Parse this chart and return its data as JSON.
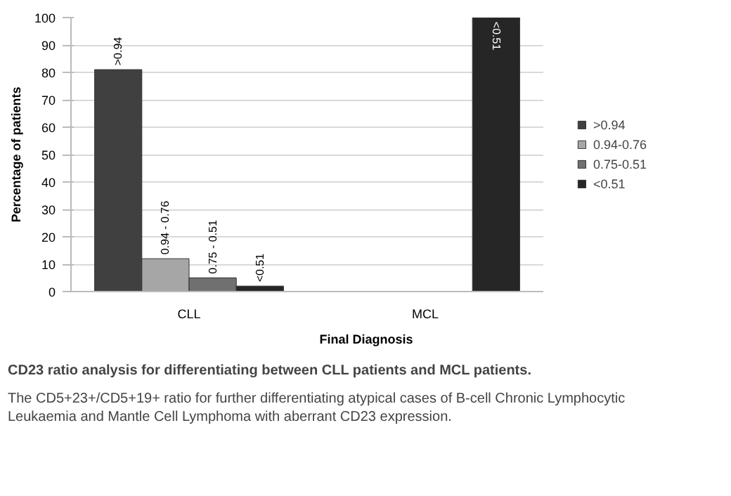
{
  "chart_data": {
    "type": "bar",
    "title": "CD23 ratio analysis for differentiating between CLL patients and MCL patients.",
    "subtitle": "The CD5+23+/CD5+19+ ratio for further differentiating atypical cases of B-cell Chronic Lymphocytic Leukaemia and Mantle Cell Lymphoma with aberrant CD23 expression.",
    "xlabel": "Final Diagnosis",
    "ylabel": "Percentage of patients",
    "categories": [
      "CLL",
      "MCL"
    ],
    "series": [
      {
        "name": ">0.94",
        "color": "#404040",
        "values": [
          81,
          null
        ]
      },
      {
        "name": "0.94-0.76",
        "color": "#a6a6a6",
        "values": [
          12,
          null
        ]
      },
      {
        "name": "0.75-0.51",
        "color": "#707070",
        "values": [
          5,
          null
        ]
      },
      {
        "name": "<0.51",
        "color": "#262626",
        "values": [
          2,
          100
        ]
      }
    ],
    "annotations": [
      ">0.94",
      "0.94 - 0.76",
      "0.75 - 0.51",
      "<0.51",
      "<0.51"
    ],
    "ylim": [
      0,
      100
    ],
    "yticks": [
      0,
      10,
      20,
      30,
      40,
      50,
      60,
      70,
      80,
      90,
      100
    ],
    "grid": "y",
    "legend": "right"
  }
}
